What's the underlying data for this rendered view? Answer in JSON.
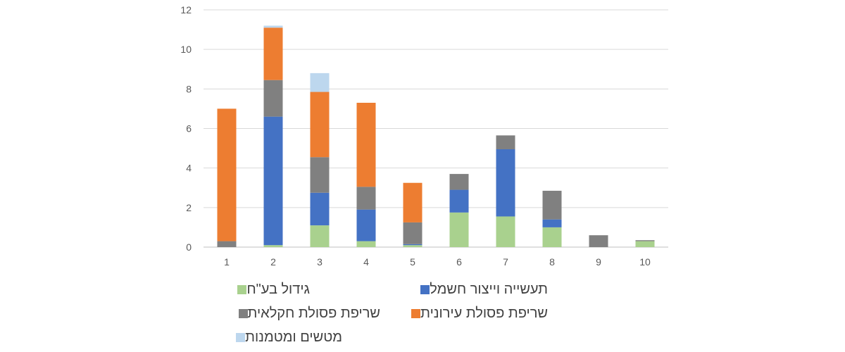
{
  "chart_data": {
    "type": "bar",
    "stacked": true,
    "categories": [
      "1",
      "2",
      "3",
      "4",
      "5",
      "6",
      "7",
      "8",
      "9",
      "10"
    ],
    "ylim": [
      0,
      12
    ],
    "yticks": [
      0,
      2,
      4,
      6,
      8,
      10,
      12
    ],
    "grid": true,
    "legend_position": "bottom",
    "series": [
      {
        "name": "גידול בע\"ח",
        "color": "#A9D18E",
        "values": [
          0,
          0.1,
          1.1,
          0.3,
          0.1,
          1.75,
          1.55,
          1.0,
          0,
          0.3
        ]
      },
      {
        "name": "תעשייה וייצור חשמל",
        "color": "#4472C4",
        "values": [
          0,
          6.5,
          1.65,
          1.6,
          0.05,
          1.15,
          3.4,
          0.4,
          0,
          0
        ]
      },
      {
        "name": "שריפת פסולת חקלאית",
        "color": "#808080",
        "values": [
          0.3,
          1.85,
          1.8,
          1.15,
          1.1,
          0.8,
          0.7,
          1.45,
          0.6,
          0.05
        ]
      },
      {
        "name": "שריפת פסולת עירונית",
        "color": "#ED7D31",
        "values": [
          6.7,
          2.65,
          3.3,
          4.25,
          2.0,
          0,
          0,
          0,
          0,
          0
        ]
      },
      {
        "name": "מטשים ומטמנות",
        "color": "#BDD7EE",
        "values": [
          0,
          0.1,
          0.95,
          0,
          0,
          0,
          0,
          0,
          0,
          0
        ]
      }
    ]
  }
}
